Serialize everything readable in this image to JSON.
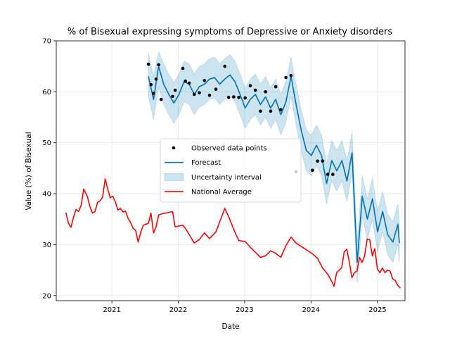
{
  "chart_data": {
    "type": "line",
    "title": "% of Bisexual expressing symptoms of Depressive or Anxiety disorders",
    "xlabel": "Date",
    "ylabel": "Value (%) of Bisexual",
    "xlim": [
      "2020-03-01",
      "2025-06-01"
    ],
    "ylim": [
      19,
      70
    ],
    "x_ticks": [
      "2021-01-01",
      "2022-01-01",
      "2023-01-01",
      "2024-01-01",
      "2025-01-01"
    ],
    "x_tick_labels": [
      "2021",
      "2022",
      "2023",
      "2024",
      "2025"
    ],
    "y_ticks": [
      20,
      30,
      40,
      50,
      60,
      70
    ],
    "grid": true,
    "legend_position": "center",
    "colors": {
      "observed": "#000000",
      "forecast": "#0072B2",
      "uncertainty": "#0072B2",
      "national": "#ff0000"
    },
    "series": [
      {
        "name": "Observed data points",
        "kind": "scatter",
        "x": [
          "2021-07-21",
          "2021-08-04",
          "2021-08-18",
          "2021-09-01",
          "2021-09-15",
          "2021-09-29",
          "2021-12-01",
          "2021-12-15",
          "2022-01-26",
          "2022-02-09",
          "2022-03-02",
          "2022-03-30",
          "2022-04-27",
          "2022-05-25",
          "2022-06-22",
          "2022-07-27",
          "2022-09-14",
          "2022-10-05",
          "2022-11-02",
          "2022-11-30",
          "2023-01-04",
          "2023-02-01",
          "2023-03-01",
          "2023-03-29",
          "2023-04-26",
          "2023-05-24",
          "2023-06-21",
          "2023-07-19",
          "2023-08-16",
          "2023-09-13",
          "2023-10-11",
          "2024-01-09",
          "2024-02-06",
          "2024-03-05",
          "2024-04-02",
          "2024-04-30"
        ],
        "y": [
          65.4,
          61.4,
          59.7,
          62.5,
          65.3,
          58.5,
          59.1,
          60.3,
          64.6,
          62.1,
          61.7,
          59.5,
          59.8,
          62.2,
          59.3,
          60.5,
          65.0,
          58.9,
          59.0,
          58.9,
          58.8,
          61.2,
          60.3,
          56.2,
          60.0,
          56.2,
          61.0,
          56.5,
          62.8,
          63.2,
          44.3,
          44.6,
          46.4,
          46.4,
          43.8,
          43.8
        ]
      },
      {
        "name": "Forecast",
        "kind": "line",
        "x": [
          "2021-07-21",
          "2021-08-18",
          "2021-09-15",
          "2021-10-13",
          "2021-11-10",
          "2021-12-08",
          "2022-01-05",
          "2022-02-02",
          "2022-03-02",
          "2022-03-30",
          "2022-04-27",
          "2022-05-25",
          "2022-06-22",
          "2022-07-20",
          "2022-08-17",
          "2022-09-14",
          "2022-10-12",
          "2022-11-09",
          "2022-12-07",
          "2023-01-04",
          "2023-02-01",
          "2023-03-01",
          "2023-03-29",
          "2023-04-26",
          "2023-05-24",
          "2023-06-21",
          "2023-07-19",
          "2023-08-16",
          "2023-09-13",
          "2023-10-11",
          "2023-11-08",
          "2023-12-06",
          "2024-01-03",
          "2024-01-31",
          "2024-02-28",
          "2024-03-27",
          "2024-04-24",
          "2024-05-22",
          "2024-06-19",
          "2024-07-17",
          "2024-08-14",
          "2024-09-11",
          "2024-10-09",
          "2024-11-06",
          "2024-12-04",
          "2025-01-01",
          "2025-01-29",
          "2025-02-26",
          "2025-03-26",
          "2025-04-23",
          "2025-05-01"
        ],
        "y": [
          63.0,
          58.5,
          65.0,
          61.5,
          59.5,
          57.8,
          59.5,
          62.0,
          61.5,
          59.5,
          61.0,
          61.5,
          62.5,
          62.8,
          61.5,
          62.5,
          63.3,
          62.0,
          59.5,
          56.8,
          58.5,
          59.5,
          57.5,
          59.0,
          56.8,
          58.5,
          55.5,
          58.0,
          63.0,
          57.5,
          52.5,
          48.5,
          47.5,
          49.5,
          47.5,
          42.0,
          46.5,
          44.5,
          46.5,
          42.5,
          48.0,
          26.5,
          39.5,
          35.0,
          39.0,
          32.5,
          36.5,
          32.0,
          30.5,
          34.0,
          30.3
        ]
      },
      {
        "name": "Uncertainty interval",
        "kind": "band",
        "x": [
          "2021-07-21",
          "2021-08-18",
          "2021-09-15",
          "2021-10-13",
          "2021-11-10",
          "2021-12-08",
          "2022-01-05",
          "2022-02-02",
          "2022-03-02",
          "2022-03-30",
          "2022-04-27",
          "2022-05-25",
          "2022-06-22",
          "2022-07-20",
          "2022-08-17",
          "2022-09-14",
          "2022-10-12",
          "2022-11-09",
          "2022-12-07",
          "2023-01-04",
          "2023-02-01",
          "2023-03-01",
          "2023-03-29",
          "2023-04-26",
          "2023-05-24",
          "2023-06-21",
          "2023-07-19",
          "2023-08-16",
          "2023-09-13",
          "2023-10-11",
          "2023-11-08",
          "2023-12-06",
          "2024-01-03",
          "2024-01-31",
          "2024-02-28",
          "2024-03-27",
          "2024-04-24",
          "2024-05-22",
          "2024-06-19",
          "2024-07-17",
          "2024-08-14",
          "2024-09-11",
          "2024-10-09",
          "2024-11-06",
          "2024-12-04",
          "2025-01-01",
          "2025-01-29",
          "2025-02-26",
          "2025-03-26",
          "2025-04-23",
          "2025-05-01"
        ],
        "upper": [
          67.5,
          63.0,
          67.8,
          65.5,
          63.5,
          61.8,
          63.5,
          66.0,
          65.5,
          63.5,
          65.0,
          65.5,
          66.5,
          66.8,
          65.5,
          66.5,
          67.3,
          66.0,
          63.5,
          60.8,
          62.5,
          63.5,
          61.5,
          63.0,
          60.8,
          62.5,
          59.5,
          62.0,
          66.8,
          61.5,
          56.5,
          52.5,
          51.5,
          53.5,
          51.5,
          46.0,
          50.5,
          48.5,
          50.5,
          46.5,
          52.0,
          30.5,
          43.5,
          39.0,
          43.0,
          36.5,
          40.5,
          36.0,
          34.5,
          38.0,
          34.5
        ],
        "lower": [
          59.0,
          54.5,
          61.0,
          57.5,
          55.5,
          53.8,
          55.5,
          58.0,
          57.5,
          55.5,
          57.0,
          57.5,
          58.5,
          58.8,
          57.5,
          58.5,
          59.3,
          58.0,
          55.5,
          52.8,
          54.5,
          55.5,
          53.5,
          55.0,
          52.8,
          54.5,
          51.5,
          54.0,
          59.0,
          53.5,
          48.5,
          44.5,
          43.5,
          45.5,
          43.5,
          38.0,
          42.5,
          40.5,
          42.5,
          38.5,
          44.0,
          22.5,
          35.5,
          31.0,
          35.0,
          28.5,
          32.5,
          28.0,
          26.5,
          30.0,
          26.3
        ]
      },
      {
        "name": "National Average",
        "kind": "line",
        "x": [
          "2020-04-23",
          "2020-05-07",
          "2020-05-21",
          "2020-06-04",
          "2020-06-18",
          "2020-07-02",
          "2020-07-16",
          "2020-07-30",
          "2020-08-19",
          "2020-09-02",
          "2020-09-16",
          "2020-09-30",
          "2020-10-14",
          "2020-10-28",
          "2020-11-11",
          "2020-11-25",
          "2020-12-09",
          "2020-12-23",
          "2021-01-06",
          "2021-01-20",
          "2021-02-03",
          "2021-02-17",
          "2021-03-03",
          "2021-03-17",
          "2021-03-31",
          "2021-04-14",
          "2021-04-28",
          "2021-05-12",
          "2021-05-26",
          "2021-06-09",
          "2021-06-23",
          "2021-07-21",
          "2021-08-04",
          "2021-08-18",
          "2021-09-01",
          "2021-09-15",
          "2021-09-29",
          "2021-12-01",
          "2021-12-15",
          "2022-01-26",
          "2022-02-09",
          "2022-03-02",
          "2022-03-30",
          "2022-04-27",
          "2022-05-25",
          "2022-06-22",
          "2022-07-27",
          "2022-09-14",
          "2022-10-05",
          "2022-11-02",
          "2022-11-30",
          "2023-01-04",
          "2023-02-01",
          "2023-03-01",
          "2023-03-29",
          "2023-04-26",
          "2023-05-24",
          "2023-06-21",
          "2023-07-19",
          "2023-08-16",
          "2023-09-13",
          "2023-10-11",
          "2024-01-09",
          "2024-02-06",
          "2024-03-05",
          "2024-04-02",
          "2024-04-30",
          "2024-05-07",
          "2024-05-21",
          "2024-06-04",
          "2024-06-18",
          "2024-07-02",
          "2024-07-16",
          "2024-07-30",
          "2024-08-13",
          "2024-08-27",
          "2024-09-10",
          "2024-09-24",
          "2024-10-08",
          "2024-10-22",
          "2024-11-05",
          "2024-11-19",
          "2024-12-03",
          "2024-12-17",
          "2024-12-31",
          "2025-01-14",
          "2025-01-28",
          "2025-02-11",
          "2025-02-25",
          "2025-03-11",
          "2025-03-25",
          "2025-04-08",
          "2025-04-22",
          "2025-05-06"
        ],
        "y": [
          36.3,
          34.2,
          33.4,
          35.4,
          36.9,
          36.5,
          37.7,
          40.9,
          39.5,
          37.5,
          36.2,
          36.5,
          38.3,
          38.6,
          39.3,
          42.9,
          40.9,
          39.2,
          39.5,
          38.4,
          36.8,
          37.1,
          36.4,
          36.6,
          35.2,
          34.3,
          33.2,
          32.8,
          30.5,
          32.5,
          33.8,
          34.2,
          36.2,
          32.3,
          33.5,
          35.8,
          36.0,
          36.5,
          33.5,
          33.8,
          33.2,
          32.0,
          30.3,
          31.0,
          32.3,
          31.2,
          32.5,
          37.1,
          35.5,
          33.0,
          30.8,
          30.6,
          29.5,
          28.5,
          27.5,
          27.8,
          28.8,
          28.3,
          27.5,
          29.8,
          31.5,
          30.3,
          28.2,
          27.3,
          25.4,
          24.2,
          22.4,
          21.8,
          24.5,
          25.0,
          25.5,
          28.6,
          29.1,
          26.5,
          23.5,
          24.5,
          24.8,
          27.5,
          26.5,
          27.8,
          31.1,
          31.0,
          27.8,
          29.2,
          25.2,
          24.5,
          25.4,
          24.5,
          25.0,
          24.8,
          23.3,
          23.0,
          22.0,
          21.5
        ]
      }
    ]
  }
}
